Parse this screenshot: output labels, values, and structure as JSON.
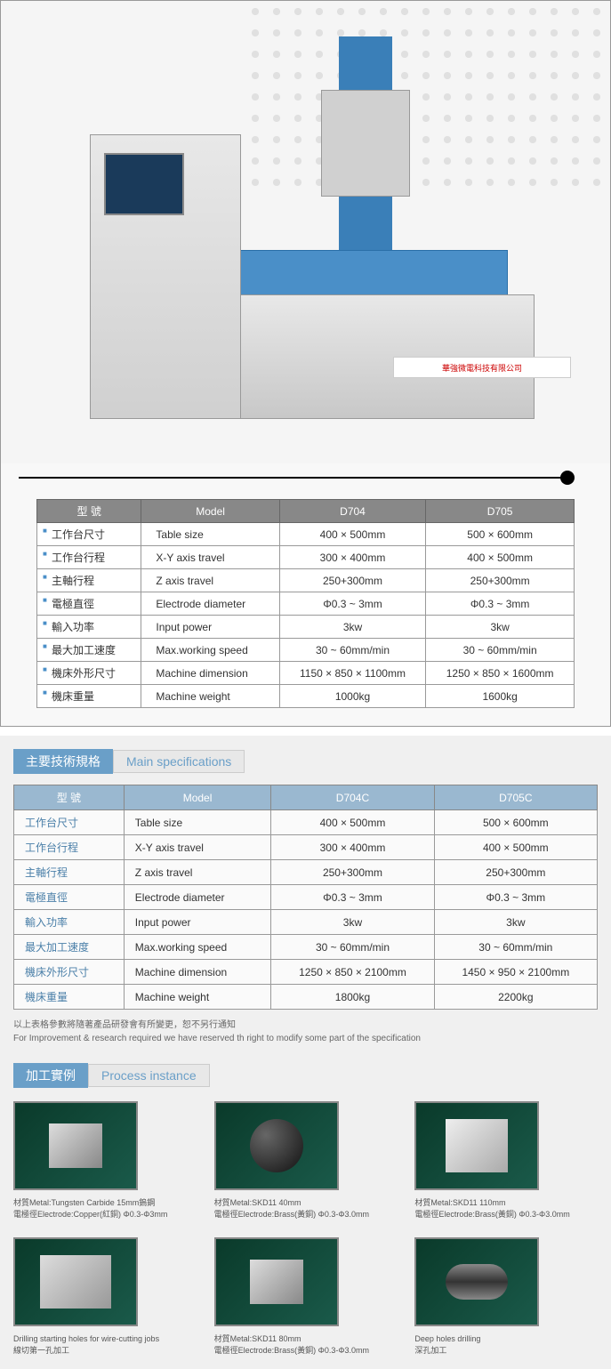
{
  "machine_label": "華強微電科技有限公司",
  "table1": {
    "headers": [
      "型 號",
      "Model",
      "D704",
      "D705"
    ],
    "rows": [
      [
        "工作台尺寸",
        "Table size",
        "400 × 500mm",
        "500 × 600mm"
      ],
      [
        "工作台行程",
        "X-Y axis travel",
        "300 × 400mm",
        "400 × 500mm"
      ],
      [
        "主軸行程",
        "Z axis travel",
        "250+300mm",
        "250+300mm"
      ],
      [
        "電極直徑",
        "Electrode diameter",
        "Φ0.3 ~ 3mm",
        "Φ0.3 ~ 3mm"
      ],
      [
        "輸入功率",
        "Input power",
        "3kw",
        "3kw"
      ],
      [
        "最大加工速度",
        "Max.working speed",
        "30 ~ 60mm/min",
        "30 ~ 60mm/min"
      ],
      [
        "機床外形尺寸",
        "Machine dimension",
        "1150 × 850 × 1100mm",
        "1250 × 850 × 1600mm"
      ],
      [
        "機床重量",
        "Machine weight",
        "1000kg",
        "1600kg"
      ]
    ]
  },
  "section2_header": {
    "cn": "主要技術規格",
    "en": "Main specifications"
  },
  "table2": {
    "headers": [
      "型 號",
      "Model",
      "D704C",
      "D705C"
    ],
    "rows": [
      [
        "工作台尺寸",
        "Table size",
        "400 × 500mm",
        "500 × 600mm"
      ],
      [
        "工作台行程",
        "X-Y axis travel",
        "300 × 400mm",
        "400 × 500mm"
      ],
      [
        "主軸行程",
        "Z axis travel",
        "250+300mm",
        "250+300mm"
      ],
      [
        "電極直徑",
        "Electrode diameter",
        "Φ0.3 ~ 3mm",
        "Φ0.3 ~ 3mm"
      ],
      [
        "輸入功率",
        "Input power",
        "3kw",
        "3kw"
      ],
      [
        "最大加工速度",
        "Max.working speed",
        "30 ~ 60mm/min",
        "30 ~ 60mm/min"
      ],
      [
        "機床外形尺寸",
        "Machine dimension",
        "1250 × 850 × 2100mm",
        "1450 × 950 × 2100mm"
      ],
      [
        "機床重量",
        "Machine weight",
        "1800kg",
        "2200kg"
      ]
    ]
  },
  "note_cn": "以上表格參數將隨著產品研發會有所變更，恕不另行通知",
  "note_en": "For Improvement & research required we have reserved th right to modify some part of the specification",
  "process_header": {
    "cn": "加工實例",
    "en": "Process instance"
  },
  "process": [
    {
      "line1": "材質Metal:Tungsten Carbide 15mm鎢鋼",
      "line2": "電極徑Electrode:Copper(紅銅) Φ0.3-Φ3mm"
    },
    {
      "line1": "材質Metal:SKD11 40mm",
      "line2": "電極徑Electrode:Brass(黃銅) Φ0.3-Φ3.0mm"
    },
    {
      "line1": "材質Metal:SKD11 110mm",
      "line2": "電極徑Electrode:Brass(黃銅) Φ0.3-Φ3.0mm"
    },
    {
      "line1": "Drilling starting holes for wire-cutting jobs",
      "line2": "線切第一孔加工"
    },
    {
      "line1": "材質Metal:SKD11 80mm",
      "line2": "電極徑Electrode:Brass(黃銅) Φ0.3-Φ3.0mm"
    },
    {
      "line1": "Deep holes drilling",
      "line2": "深孔加工"
    }
  ]
}
